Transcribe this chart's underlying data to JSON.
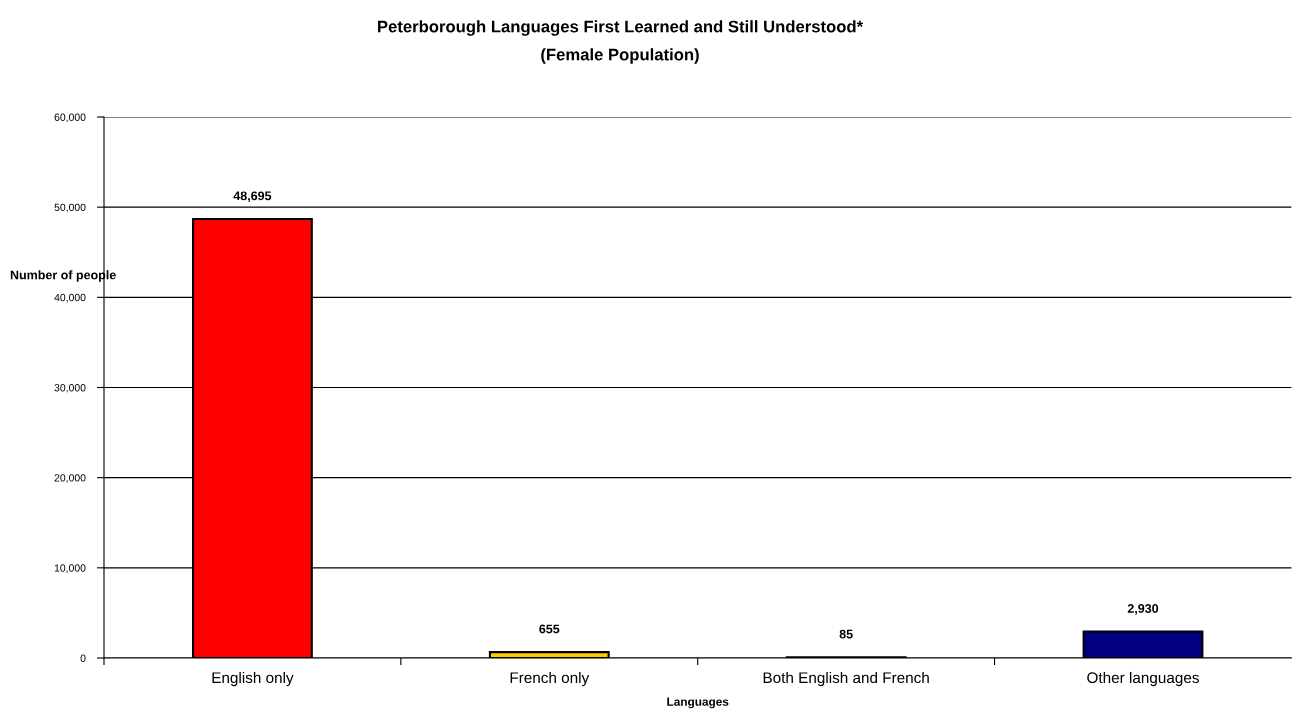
{
  "chart_data": {
    "type": "bar",
    "title": "Peterborough Languages First Learned and Still Understood*",
    "subtitle": "(Female Population)",
    "xlabel": "Languages",
    "ylabel": "Number of people",
    "categories": [
      "English only",
      "French only",
      "Both English and French",
      "Other languages"
    ],
    "values": [
      48695,
      655,
      85,
      2930
    ],
    "colors": [
      "#ff0000",
      "#ffcc00",
      "#000000",
      "#000080"
    ],
    "value_labels": [
      "48,695",
      "655",
      "85",
      "2,930"
    ],
    "ylim": [
      0,
      60000
    ],
    "yticks": [
      {
        "value": 0,
        "label": "0"
      },
      {
        "value": 10000,
        "label": "10,000"
      },
      {
        "value": 20000,
        "label": "20,000"
      },
      {
        "value": 30000,
        "label": "30,000"
      },
      {
        "value": 40000,
        "label": "40,000"
      },
      {
        "value": 50000,
        "label": "50,000"
      },
      {
        "value": 60000,
        "label": "60,000"
      }
    ],
    "grid": "y"
  }
}
